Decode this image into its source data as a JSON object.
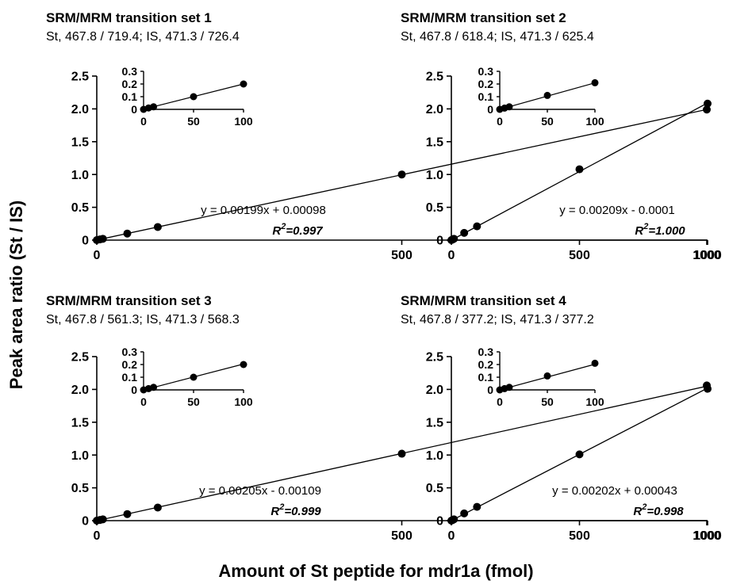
{
  "figure": {
    "ylabel": "Peak area ratio (St / IS)",
    "xlabel": "Amount of St peptide for mdr1a (fmol)"
  },
  "chart_data": [
    {
      "type": "scatter",
      "title": "SRM/MRM transition set 1",
      "subtitle": "St, 467.8 / 719.4; IS, 471.3 / 726.4",
      "x": [
        0,
        5,
        10,
        50,
        100,
        500,
        1000
      ],
      "y": [
        0.0,
        0.011,
        0.02,
        0.1,
        0.2,
        1.0,
        1.99
      ],
      "xlim": [
        0,
        1000
      ],
      "ylim": [
        0,
        2.5
      ],
      "xticks": [
        "0",
        "500",
        "1000"
      ],
      "yticks": [
        "0",
        "0.5",
        "1.0",
        "1.5",
        "2.0",
        "2.5"
      ],
      "fit": {
        "slope": 0.00199,
        "intercept": 0.00098
      },
      "equation": "y = 0.00199x + 0.00098",
      "r2_value": "=0.997",
      "inset": {
        "x": [
          0,
          5,
          10,
          50,
          100
        ],
        "y": [
          0.0,
          0.011,
          0.02,
          0.1,
          0.2
        ],
        "xlim": [
          0,
          100
        ],
        "ylim": [
          0,
          0.3
        ],
        "xticks": [
          "0",
          "50",
          "100"
        ],
        "yticks": [
          "0",
          "0.1",
          "0.2",
          "0.3"
        ]
      }
    },
    {
      "type": "scatter",
      "title": "SRM/MRM transition set 2",
      "subtitle": "St, 467.8 / 618.4; IS, 471.3 / 625.4",
      "x": [
        0,
        5,
        10,
        50,
        100,
        500,
        1000
      ],
      "y": [
        0.0,
        0.01,
        0.02,
        0.11,
        0.21,
        1.08,
        2.08
      ],
      "xlim": [
        0,
        1000
      ],
      "ylim": [
        0,
        2.5
      ],
      "xticks": [
        "0",
        "500",
        "1000"
      ],
      "yticks": [
        "0",
        "0.5",
        "1.0",
        "1.5",
        "2.0",
        "2.5"
      ],
      "fit": {
        "slope": 0.00209,
        "intercept": -0.0001
      },
      "equation": "y = 0.00209x - 0.0001",
      "r2_value": "=1.000",
      "inset": {
        "x": [
          0,
          5,
          10,
          50,
          100
        ],
        "y": [
          0.0,
          0.01,
          0.02,
          0.11,
          0.21
        ],
        "xlim": [
          0,
          100
        ],
        "ylim": [
          0,
          0.3
        ],
        "xticks": [
          "0",
          "50",
          "100"
        ],
        "yticks": [
          "0",
          "0.1",
          "0.2",
          "0.3"
        ]
      }
    },
    {
      "type": "scatter",
      "title": "SRM/MRM transition set 3",
      "subtitle": "St, 467.8 / 561.3; IS, 471.3 / 568.3",
      "x": [
        0,
        5,
        10,
        50,
        100,
        500,
        1000
      ],
      "y": [
        0.0,
        0.01,
        0.02,
        0.1,
        0.2,
        1.02,
        2.06
      ],
      "xlim": [
        0,
        1000
      ],
      "ylim": [
        0,
        2.5
      ],
      "xticks": [
        "0",
        "500",
        "1000"
      ],
      "yticks": [
        "0",
        "0.5",
        "1.0",
        "1.5",
        "2.0",
        "2.5"
      ],
      "fit": {
        "slope": 0.00205,
        "intercept": -0.00109
      },
      "equation": "y = 0.00205x - 0.00109",
      "r2_value": "=0.999",
      "inset": {
        "x": [
          0,
          5,
          10,
          50,
          100
        ],
        "y": [
          0.0,
          0.01,
          0.02,
          0.1,
          0.2
        ],
        "xlim": [
          0,
          100
        ],
        "ylim": [
          0,
          0.3
        ],
        "xticks": [
          "0",
          "50",
          "100"
        ],
        "yticks": [
          "0",
          "0.1",
          "0.2",
          "0.3"
        ]
      }
    },
    {
      "type": "scatter",
      "title": "SRM/MRM transition set 4",
      "subtitle": "St, 467.8 / 377.2; IS, 471.3 / 377.2",
      "x": [
        0,
        5,
        10,
        50,
        100,
        500,
        1000
      ],
      "y": [
        0.0,
        0.01,
        0.02,
        0.11,
        0.21,
        1.01,
        2.01
      ],
      "xlim": [
        0,
        1000
      ],
      "ylim": [
        0,
        2.5
      ],
      "xticks": [
        "0",
        "500",
        "1000"
      ],
      "yticks": [
        "0",
        "0.5",
        "1.0",
        "1.5",
        "2.0",
        "2.5"
      ],
      "fit": {
        "slope": 0.00202,
        "intercept": 0.00043
      },
      "equation": "y = 0.00202x + 0.00043",
      "r2_value": "=0.998",
      "inset": {
        "x": [
          0,
          5,
          10,
          50,
          100
        ],
        "y": [
          0.0,
          0.01,
          0.02,
          0.11,
          0.21
        ],
        "xlim": [
          0,
          100
        ],
        "ylim": [
          0,
          0.3
        ],
        "xticks": [
          "0",
          "50",
          "100"
        ],
        "yticks": [
          "0",
          "0.1",
          "0.2",
          "0.3"
        ]
      }
    }
  ]
}
